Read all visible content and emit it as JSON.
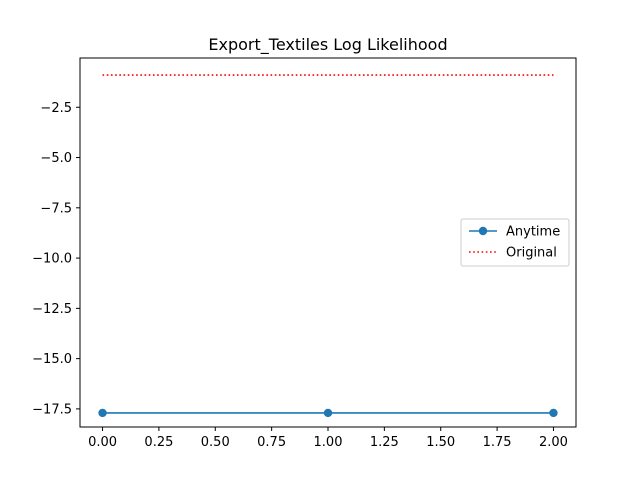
{
  "chart_data": {
    "type": "line",
    "title": "Export_Textiles Log Likelihood",
    "xlabel": "",
    "ylabel": "",
    "xlim": [
      -0.1,
      2.1
    ],
    "ylim": [
      -18.4,
      -0.05
    ],
    "x_ticks": [
      0.0,
      0.25,
      0.5,
      0.75,
      1.0,
      1.25,
      1.5,
      1.75,
      2.0
    ],
    "x_tick_labels": [
      "0.00",
      "0.25",
      "0.50",
      "0.75",
      "1.00",
      "1.25",
      "1.50",
      "1.75",
      "2.00"
    ],
    "y_ticks": [
      -2.5,
      -5.0,
      -7.5,
      -10.0,
      -12.5,
      -15.0,
      -17.5
    ],
    "y_tick_labels": [
      "−2.5",
      "−5.0",
      "−7.5",
      "−10.0",
      "−12.5",
      "−15.0",
      "−17.5"
    ],
    "grid": false,
    "legend_position": "center-right",
    "series": [
      {
        "name": "Anytime",
        "style": "solid-with-markers",
        "color": "#1f77b4",
        "x": [
          0,
          1,
          2
        ],
        "y": [
          -17.7,
          -17.7,
          -17.7
        ]
      },
      {
        "name": "Original",
        "style": "dotted",
        "color": "#ff0000",
        "x": [
          0,
          2
        ],
        "y": [
          -0.9,
          -0.9
        ]
      }
    ]
  }
}
